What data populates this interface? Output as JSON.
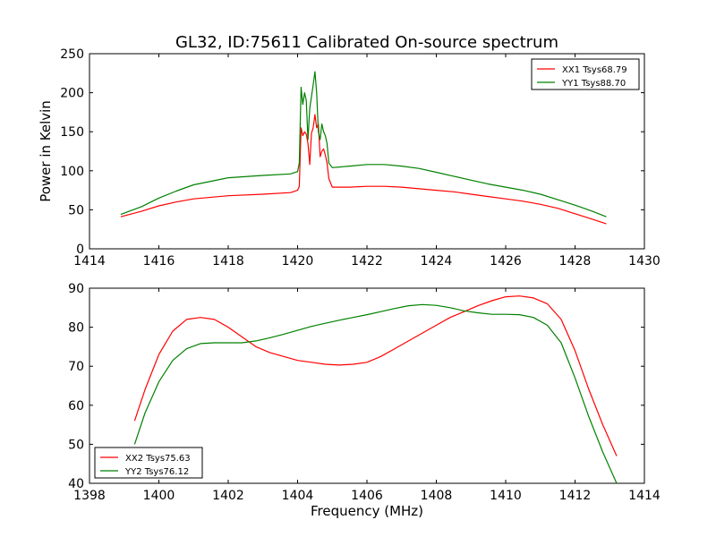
{
  "figure_title": "GL32, ID:75611 Calibrated On-source spectrum",
  "colors": {
    "red": "#ff0000",
    "green": "#008000"
  },
  "chart_data": [
    {
      "type": "line",
      "title": "GL32, ID:75611 Calibrated On-source spectrum",
      "xlabel": "",
      "ylabel": "Power in Kelvin",
      "xlim": [
        1414,
        1430
      ],
      "ylim": [
        0,
        250
      ],
      "xticks": [
        1414,
        1416,
        1418,
        1420,
        1422,
        1424,
        1426,
        1428,
        1430
      ],
      "yticks": [
        0,
        50,
        100,
        150,
        200,
        250
      ],
      "grid": false,
      "legend_position": "top-right",
      "series": [
        {
          "name": "XX1 Tsys68.79",
          "color": "#ff0000",
          "x": [
            1414.9,
            1415.5,
            1416,
            1416.5,
            1417,
            1418,
            1419,
            1419.8,
            1420.0,
            1420.05,
            1420.1,
            1420.15,
            1420.2,
            1420.25,
            1420.3,
            1420.35,
            1420.4,
            1420.45,
            1420.5,
            1420.55,
            1420.6,
            1420.65,
            1420.7,
            1420.75,
            1420.8,
            1420.85,
            1420.9,
            1421.0,
            1421.5,
            1422,
            1422.5,
            1423,
            1423.5,
            1424,
            1424.5,
            1425,
            1425.5,
            1426,
            1426.5,
            1427,
            1427.5,
            1428,
            1428.5,
            1428.9
          ],
          "y": [
            41,
            48,
            55,
            60,
            64,
            68,
            70,
            72,
            75,
            80,
            155,
            145,
            150,
            147,
            135,
            108,
            148,
            155,
            172,
            155,
            160,
            118,
            125,
            128,
            120,
            110,
            90,
            79,
            79,
            80,
            80,
            79,
            77,
            75,
            73,
            70,
            67,
            64,
            61,
            57,
            52,
            45,
            38,
            32
          ]
        },
        {
          "name": "YY1 Tsys88.70",
          "color": "#008000",
          "x": [
            1414.9,
            1415.5,
            1416,
            1416.5,
            1417,
            1418,
            1419,
            1419.8,
            1420.0,
            1420.05,
            1420.1,
            1420.15,
            1420.2,
            1420.25,
            1420.3,
            1420.35,
            1420.4,
            1420.45,
            1420.5,
            1420.55,
            1420.6,
            1420.65,
            1420.7,
            1420.75,
            1420.8,
            1420.85,
            1420.9,
            1421.0,
            1421.5,
            1422,
            1422.5,
            1423,
            1423.5,
            1424,
            1424.5,
            1425,
            1425.5,
            1426,
            1426.5,
            1427,
            1427.5,
            1428,
            1428.5,
            1428.9
          ],
          "y": [
            44,
            54,
            65,
            74,
            82,
            91,
            94,
            96,
            99,
            110,
            207,
            185,
            200,
            190,
            140,
            180,
            195,
            210,
            227,
            200,
            150,
            140,
            160,
            150,
            145,
            135,
            110,
            104,
            106,
            108,
            108,
            106,
            103,
            98,
            93,
            88,
            83,
            79,
            75,
            70,
            63,
            56,
            48,
            41
          ]
        }
      ]
    },
    {
      "type": "line",
      "title": "",
      "xlabel": "Frequency (MHz)",
      "ylabel": "",
      "xlim": [
        1398,
        1414
      ],
      "ylim": [
        40,
        90
      ],
      "xticks": [
        1398,
        1400,
        1402,
        1404,
        1406,
        1408,
        1410,
        1412,
        1414
      ],
      "yticks": [
        40,
        50,
        60,
        70,
        80,
        90
      ],
      "grid": false,
      "legend_position": "bottom-left",
      "series": [
        {
          "name": "XX2 Tsys75.63",
          "color": "#ff0000",
          "x": [
            1399.3,
            1399.6,
            1400,
            1400.4,
            1400.8,
            1401.2,
            1401.6,
            1402,
            1402.4,
            1402.8,
            1403.2,
            1403.6,
            1404,
            1404.4,
            1404.8,
            1405.2,
            1405.6,
            1406,
            1406.4,
            1406.8,
            1407.2,
            1407.6,
            1408,
            1408.4,
            1408.8,
            1409.2,
            1409.6,
            1410,
            1410.4,
            1410.8,
            1411.2,
            1411.6,
            1412,
            1412.4,
            1412.8,
            1413.2
          ],
          "y": [
            56,
            64,
            73,
            79,
            82,
            82.5,
            82,
            80,
            77.5,
            75,
            73.5,
            72.5,
            71.5,
            71,
            70.5,
            70.3,
            70.5,
            71,
            72.5,
            74.5,
            76.5,
            78.5,
            80.5,
            82.5,
            84,
            85.5,
            86.8,
            87.8,
            88,
            87.5,
            86,
            82,
            74,
            64,
            55,
            47
          ]
        },
        {
          "name": "YY2 Tsys76.12",
          "color": "#008000",
          "x": [
            1399.3,
            1399.6,
            1400,
            1400.4,
            1400.8,
            1401.2,
            1401.6,
            1402,
            1402.4,
            1402.8,
            1403.2,
            1403.6,
            1404,
            1404.4,
            1404.8,
            1405.2,
            1405.6,
            1406,
            1406.4,
            1406.8,
            1407.2,
            1407.6,
            1408,
            1408.4,
            1408.8,
            1409.2,
            1409.6,
            1410,
            1410.4,
            1410.8,
            1411.2,
            1411.6,
            1412,
            1412.4,
            1412.8,
            1413.2
          ],
          "y": [
            50,
            58,
            66,
            71.5,
            74.5,
            75.8,
            76,
            76,
            76,
            76.5,
            77.3,
            78.2,
            79.2,
            80.2,
            81,
            81.8,
            82.5,
            83.2,
            84,
            84.8,
            85.5,
            85.8,
            85.6,
            85,
            84.2,
            83.7,
            83.3,
            83.3,
            83.2,
            82.5,
            80.5,
            76,
            67,
            57,
            48,
            40
          ]
        }
      ]
    }
  ]
}
